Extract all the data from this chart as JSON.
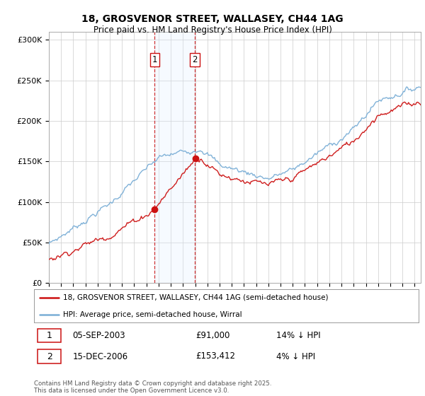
{
  "title_line1": "18, GROSVENOR STREET, WALLASEY, CH44 1AG",
  "title_line2": "Price paid vs. HM Land Registry's House Price Index (HPI)",
  "ylabel_ticks": [
    "£0",
    "£50K",
    "£100K",
    "£150K",
    "£200K",
    "£250K",
    "£300K"
  ],
  "ytick_values": [
    0,
    50000,
    100000,
    150000,
    200000,
    250000,
    300000
  ],
  "ylim": [
    0,
    310000
  ],
  "xlim_start": 1995.0,
  "xlim_end": 2025.5,
  "hpi_color": "#7aaed6",
  "price_color": "#cc1111",
  "sale1_date": 2003.68,
  "sale1_price": 91000,
  "sale2_date": 2006.96,
  "sale2_price": 153412,
  "legend_line1": "18, GROSVENOR STREET, WALLASEY, CH44 1AG (semi-detached house)",
  "legend_line2": "HPI: Average price, semi-detached house, Wirral",
  "background_color": "#ffffff",
  "grid_color": "#cccccc",
  "span_color": "#ddeeff",
  "footnote": "Contains HM Land Registry data © Crown copyright and database right 2025.\nThis data is licensed under the Open Government Licence v3.0."
}
